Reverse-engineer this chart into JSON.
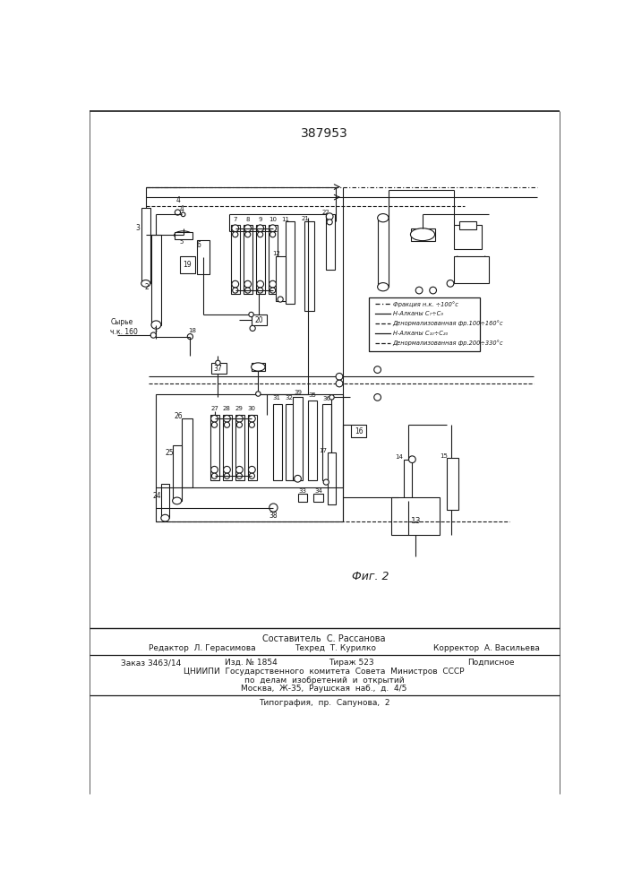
{
  "patent_number": "387953",
  "fig_label": "Фиг. 2",
  "legend_items": [
    "Фракция н.к. ÷100°с",
    "Н-Алканы C₇÷C₉",
    "Денормализованная фр.100÷160°с",
    "Н-Алканы C₁₀÷C₂₀",
    "Денормализованная фр.200÷330°с"
  ],
  "syrye_label": "Сырье\nч.к. 160",
  "footer_composer": "Составитель  С. Рассанова",
  "footer_editor": "Редактор  Л. Герасимова",
  "footer_techred": "Техред  Т. Курилко",
  "footer_corrector": "Корректор  А. Васильева",
  "footer_zakaz": "Заказ 3463/14",
  "footer_izd": "Изд. № 1854",
  "footer_tirazh": "Тираж 523",
  "footer_podpisnoe": "Подписное",
  "footer_cniipи": "ЦНИИПИ  Государственного  комитета  Совета  Министров  СССР",
  "footer_dela": "по  делам  изобретений  и  открытий",
  "footer_moscow": "Москва,  Ж-35,  Раушская  наб.,  д.  4/5",
  "footer_tipografiya": "Типография,  пр.  Сапунова,  2"
}
